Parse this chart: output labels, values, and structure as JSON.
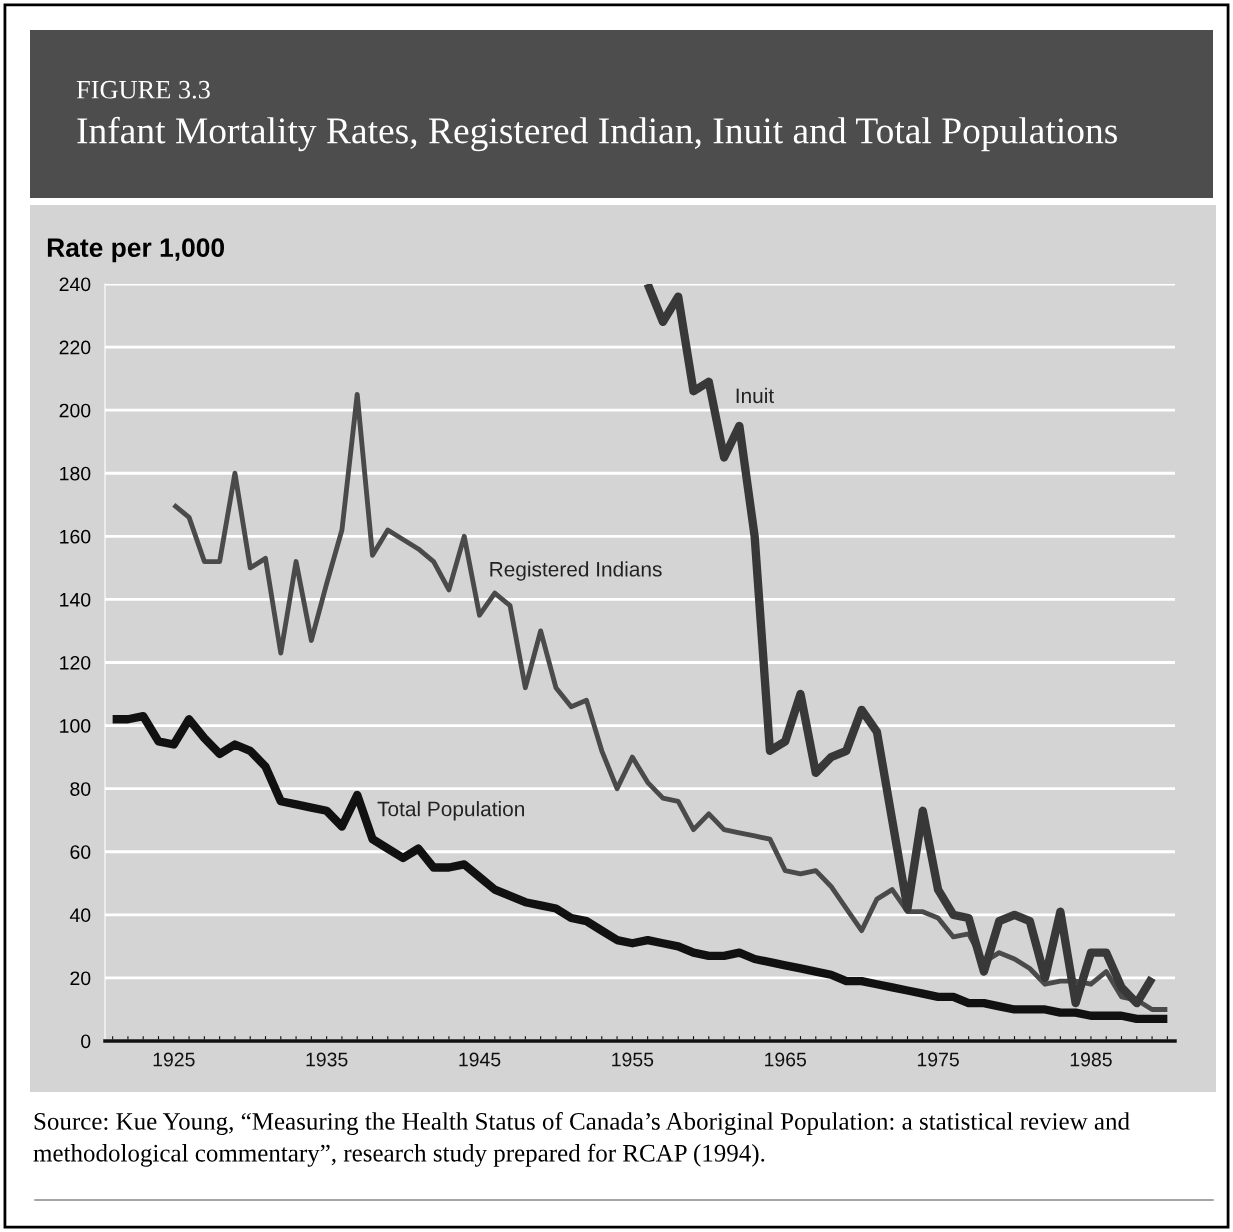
{
  "chart_data": {
    "type": "line",
    "subtitle": "FIGURE 3.3",
    "title": "Infant Mortality Rates, Registered Indian, Inuit and Total Populations",
    "ylabel": "Rate per 1,000",
    "annotations": [
      "Source: Kue Young, “Measuring the Health Status of Canada’s Aboriginal Population: a statistical review and methodological commentary”, research study prepared for RCAP (1994)."
    ],
    "series": [
      {
        "name": "Total Population",
        "color": "#111111",
        "x": [
          1921,
          1922,
          1923,
          1924,
          1925,
          1926,
          1927,
          1928,
          1929,
          1930,
          1931,
          1932,
          1933,
          1934,
          1935,
          1936,
          1937,
          1938,
          1939,
          1940,
          1941,
          1942,
          1943,
          1944,
          1945,
          1946,
          1947,
          1948,
          1949,
          1950,
          1951,
          1952,
          1953,
          1954,
          1955,
          1956,
          1957,
          1958,
          1959,
          1960,
          1961,
          1962,
          1963,
          1964,
          1965,
          1966,
          1967,
          1968,
          1969,
          1970,
          1971,
          1972,
          1973,
          1974,
          1975,
          1976,
          1977,
          1978,
          1979,
          1980,
          1981,
          1982,
          1983,
          1984,
          1985,
          1986,
          1987,
          1988,
          1989,
          1990
        ],
        "values": [
          102,
          102,
          103,
          95,
          94,
          102,
          96,
          91,
          94,
          92,
          87,
          76,
          75,
          74,
          73,
          68,
          78,
          64,
          61,
          58,
          61,
          55,
          55,
          56,
          52,
          48,
          46,
          44,
          43,
          42,
          39,
          38,
          35,
          32,
          31,
          32,
          31,
          30,
          28,
          27,
          27,
          28,
          26,
          25,
          24,
          23,
          22,
          21,
          19,
          19,
          18,
          17,
          16,
          15,
          14,
          14,
          12,
          12,
          11,
          10,
          10,
          10,
          9,
          9,
          8,
          8,
          8,
          7,
          7,
          7
        ]
      },
      {
        "name": "Registered Indians",
        "color": "#4a4a4a",
        "x": [
          1925,
          1926,
          1927,
          1928,
          1929,
          1930,
          1931,
          1932,
          1933,
          1934,
          1935,
          1936,
          1937,
          1938,
          1939,
          1940,
          1941,
          1942,
          1943,
          1944,
          1945,
          1946,
          1947,
          1948,
          1949,
          1950,
          1951,
          1952,
          1953,
          1954,
          1955,
          1956,
          1957,
          1958,
          1959,
          1960,
          1961,
          1962,
          1963,
          1964,
          1965,
          1966,
          1967,
          1968,
          1969,
          1970,
          1971,
          1972,
          1973,
          1974,
          1975,
          1976,
          1977,
          1978,
          1979,
          1980,
          1981,
          1982,
          1983,
          1984,
          1985,
          1986,
          1987,
          1988,
          1989,
          1990
        ],
        "values": [
          170,
          166,
          152,
          152,
          180,
          150,
          153,
          123,
          152,
          127,
          145,
          162,
          205,
          154,
          162,
          159,
          156,
          152,
          143,
          160,
          135,
          142,
          138,
          112,
          130,
          112,
          106,
          108,
          92,
          80,
          90,
          82,
          77,
          76,
          67,
          72,
          67,
          66,
          65,
          64,
          54,
          53,
          54,
          49,
          42,
          35,
          45,
          48,
          41,
          41,
          39,
          33,
          34,
          25,
          28,
          26,
          23,
          18,
          19,
          19,
          18,
          22,
          14,
          13,
          10,
          10
        ]
      },
      {
        "name": "Inuit",
        "color": "#383838",
        "x": [
          1956,
          1957,
          1958,
          1959,
          1960,
          1961,
          1962,
          1963,
          1964,
          1965,
          1966,
          1967,
          1968,
          1969,
          1970,
          1971,
          1972,
          1973,
          1974,
          1975,
          1976,
          1977,
          1978,
          1979,
          1980,
          1981,
          1982,
          1983,
          1984,
          1985,
          1986,
          1987,
          1988,
          1989
        ],
        "values": [
          240,
          228,
          236,
          206,
          209,
          185,
          195,
          160,
          92,
          95,
          110,
          85,
          90,
          92,
          105,
          98,
          70,
          42,
          73,
          48,
          40,
          39,
          22,
          38,
          40,
          38,
          20,
          41,
          12,
          28,
          28,
          17,
          12,
          20
        ]
      }
    ],
    "xlim": [
      1920.5,
      1990.5
    ],
    "xticks": [
      {
        "value": 1921,
        "label": null
      },
      {
        "value": 1922,
        "label": null
      },
      {
        "value": 1923,
        "label": null
      },
      {
        "value": 1924,
        "label": null
      },
      1925,
      {
        "value": 1926,
        "label": null
      },
      {
        "value": 1927,
        "label": null
      },
      {
        "value": 1928,
        "label": null
      },
      {
        "value": 1929,
        "label": null
      },
      {
        "value": 1930,
        "label": null
      },
      {
        "value": 1931,
        "label": null
      },
      {
        "value": 1932,
        "label": null
      },
      {
        "value": 1933,
        "label": null
      },
      {
        "value": 1934,
        "label": null
      },
      1935,
      {
        "value": 1936,
        "label": null
      },
      {
        "value": 1937,
        "label": null
      },
      {
        "value": 1938,
        "label": null
      },
      {
        "value": 1939,
        "label": null
      },
      {
        "value": 1940,
        "label": null
      },
      {
        "value": 1941,
        "label": null
      },
      {
        "value": 1942,
        "label": null
      },
      {
        "value": 1943,
        "label": null
      },
      {
        "value": 1944,
        "label": null
      },
      1945,
      {
        "value": 1946,
        "label": null
      },
      {
        "value": 1947,
        "label": null
      },
      {
        "value": 1948,
        "label": null
      },
      {
        "value": 1949,
        "label": null
      },
      {
        "value": 1950,
        "label": null
      },
      {
        "value": 1951,
        "label": null
      },
      {
        "value": 1952,
        "label": null
      },
      {
        "value": 1953,
        "label": null
      },
      {
        "value": 1954,
        "label": null
      },
      1955,
      {
        "value": 1956,
        "label": null
      },
      {
        "value": 1957,
        "label": null
      },
      {
        "value": 1958,
        "label": null
      },
      {
        "value": 1959,
        "label": null
      },
      {
        "value": 1960,
        "label": null
      },
      {
        "value": 1961,
        "label": null
      },
      {
        "value": 1962,
        "label": null
      },
      {
        "value": 1963,
        "label": null
      },
      {
        "value": 1964,
        "label": null
      },
      1965,
      {
        "value": 1966,
        "label": null
      },
      {
        "value": 1967,
        "label": null
      },
      {
        "value": 1968,
        "label": null
      },
      {
        "value": 1969,
        "label": null
      },
      {
        "value": 1970,
        "label": null
      },
      {
        "value": 1971,
        "label": null
      },
      {
        "value": 1972,
        "label": null
      },
      {
        "value": 1973,
        "label": null
      },
      {
        "value": 1974,
        "label": null
      },
      1975,
      {
        "value": 1976,
        "label": null
      },
      {
        "value": 1977,
        "label": null
      },
      {
        "value": 1978,
        "label": null
      },
      {
        "value": 1979,
        "label": null
      },
      {
        "value": 1980,
        "label": null
      },
      {
        "value": 1981,
        "label": null
      },
      {
        "value": 1982,
        "label": null
      },
      {
        "value": 1983,
        "label": null
      },
      {
        "value": 1984,
        "label": null
      },
      1985,
      {
        "value": 1986,
        "label": null
      },
      {
        "value": 1987,
        "label": null
      },
      {
        "value": 1988,
        "label": null
      },
      {
        "value": 1989,
        "label": null
      },
      {
        "value": 1990,
        "label": null
      }
    ],
    "ylim": [
      0,
      240
    ],
    "yticks": [
      0,
      20,
      40,
      60,
      80,
      100,
      120,
      140,
      160,
      180,
      200,
      220,
      240
    ],
    "grid": "y",
    "legend": false,
    "marker": "none",
    "line_style": "solid"
  }
}
